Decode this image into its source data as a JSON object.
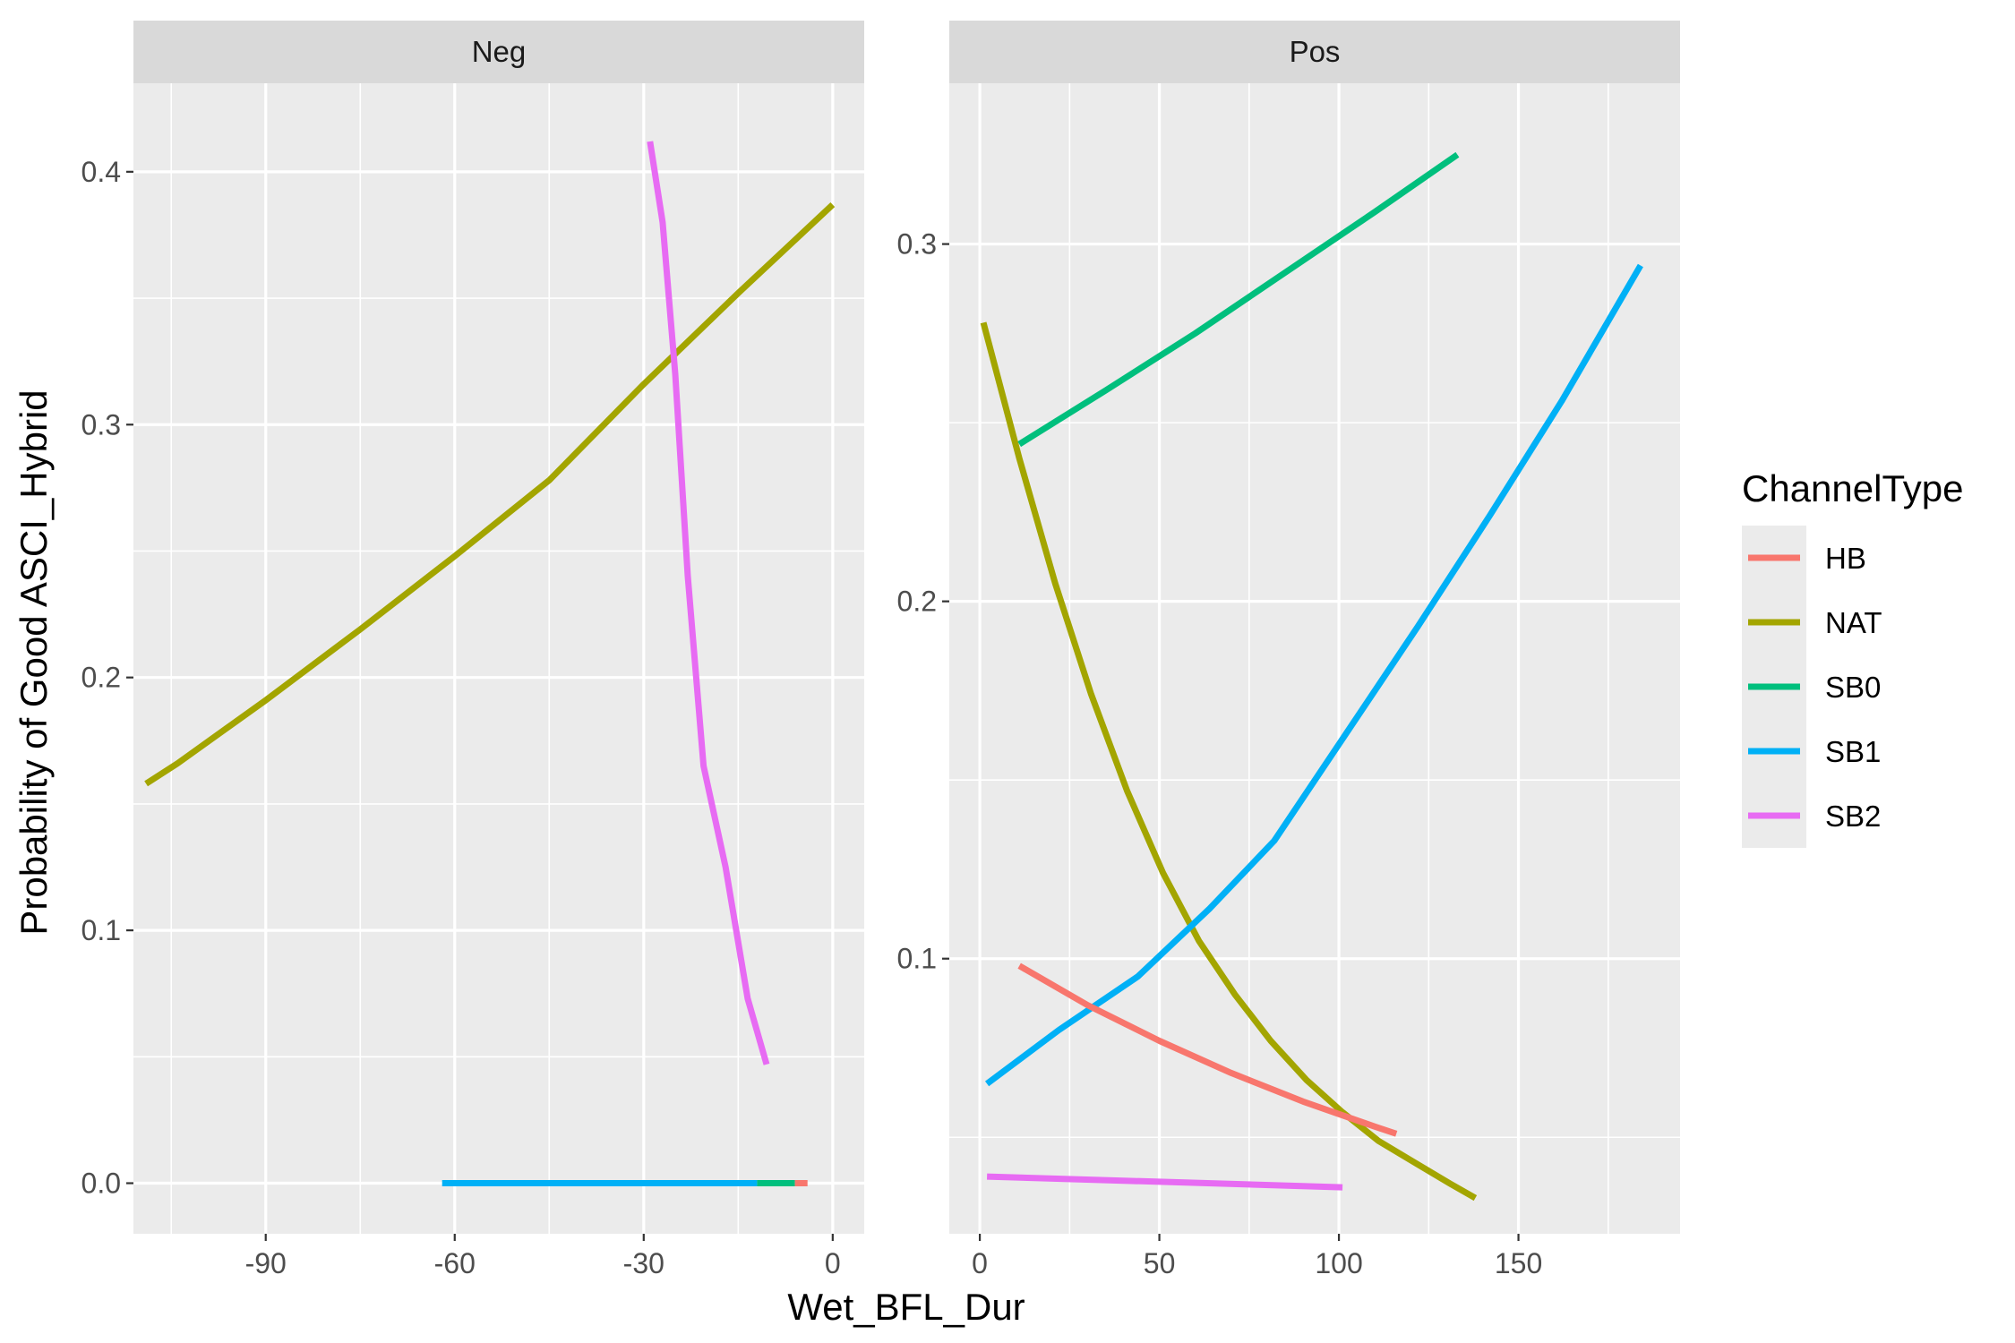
{
  "chart_data": {
    "type": "line",
    "xlabel": "Wet_BFL_Dur",
    "ylabel": "Probability of Good ASCI_Hybrid",
    "legend": {
      "title": "ChannelType",
      "position": "right"
    },
    "colors": {
      "HB": "#F8766D",
      "NAT": "#A3A500",
      "SB0": "#00BF7D",
      "SB1": "#00B0F6",
      "SB2": "#E76BF3"
    },
    "series_order": [
      "HB",
      "NAT",
      "SB0",
      "SB1",
      "SB2"
    ],
    "facets": [
      {
        "label": "Neg",
        "xlim": [
          -111,
          5
        ],
        "ylim": [
          -0.02,
          0.435
        ],
        "x_ticks": [
          -90,
          -60,
          -30,
          0
        ],
        "x_tick_labels": [
          "-90",
          "-60",
          "-30",
          "0"
        ],
        "y_ticks": [
          0.0,
          0.1,
          0.2,
          0.3,
          0.4
        ],
        "y_tick_labels": [
          "0.0",
          "0.1",
          "0.2",
          "0.3",
          "0.4"
        ],
        "series": [
          {
            "name": "SB1",
            "x": [
              -62,
              -12
            ],
            "y": [
              0.0,
              0.0
            ]
          },
          {
            "name": "SB0",
            "x": [
              -12,
              -6
            ],
            "y": [
              0.0,
              0.0
            ]
          },
          {
            "name": "HB",
            "x": [
              -6,
              -4
            ],
            "y": [
              0.0,
              0.0
            ]
          },
          {
            "name": "NAT",
            "x": [
              -109,
              -104,
              -90,
              -75,
              -60,
              -45,
              -30,
              -15,
              0
            ],
            "y": [
              0.158,
              0.166,
              0.191,
              0.219,
              0.248,
              0.278,
              0.316,
              0.352,
              0.387
            ]
          },
          {
            "name": "SB2",
            "x": [
              -29,
              -27,
              -25,
              -23,
              -20.5,
              -17,
              -13.5,
              -10.5
            ],
            "y": [
              0.412,
              0.38,
              0.32,
              0.24,
              0.165,
              0.125,
              0.073,
              0.047
            ]
          }
        ]
      },
      {
        "label": "Pos",
        "xlim": [
          -8.5,
          195
        ],
        "ylim": [
          0.023,
          0.345
        ],
        "x_ticks": [
          0,
          50,
          100,
          150
        ],
        "x_tick_labels": [
          "0",
          "50",
          "100",
          "150"
        ],
        "y_ticks": [
          0.1,
          0.2,
          0.3
        ],
        "y_tick_labels": [
          "0.1",
          "0.2",
          "0.3"
        ],
        "series": [
          {
            "name": "NAT",
            "x": [
              1,
              11,
              21,
              31,
              41,
              51,
              61,
              71,
              81,
              91,
              101,
              111,
              121,
              131,
              138
            ],
            "y": [
              0.278,
              0.24,
              0.205,
              0.174,
              0.147,
              0.124,
              0.105,
              0.09,
              0.077,
              0.066,
              0.057,
              0.049,
              0.043,
              0.037,
              0.033
            ]
          },
          {
            "name": "SB0",
            "x": [
              11,
              35,
              60,
              85,
              110,
              133
            ],
            "y": [
              0.244,
              0.259,
              0.275,
              0.292,
              0.309,
              0.325
            ]
          },
          {
            "name": "SB1",
            "x": [
              2,
              22,
              44,
              64,
              82,
              102,
              122,
              142,
              162,
              184
            ],
            "y": [
              0.065,
              0.08,
              0.095,
              0.114,
              0.133,
              0.163,
              0.193,
              0.224,
              0.256,
              0.294
            ]
          },
          {
            "name": "HB",
            "x": [
              11,
              30,
              50,
              70,
              90,
              110,
              116
            ],
            "y": [
              0.098,
              0.087,
              0.077,
              0.068,
              0.06,
              0.053,
              0.051
            ]
          },
          {
            "name": "SB2",
            "x": [
              2,
              101
            ],
            "y": [
              0.039,
              0.036
            ]
          }
        ]
      }
    ]
  }
}
